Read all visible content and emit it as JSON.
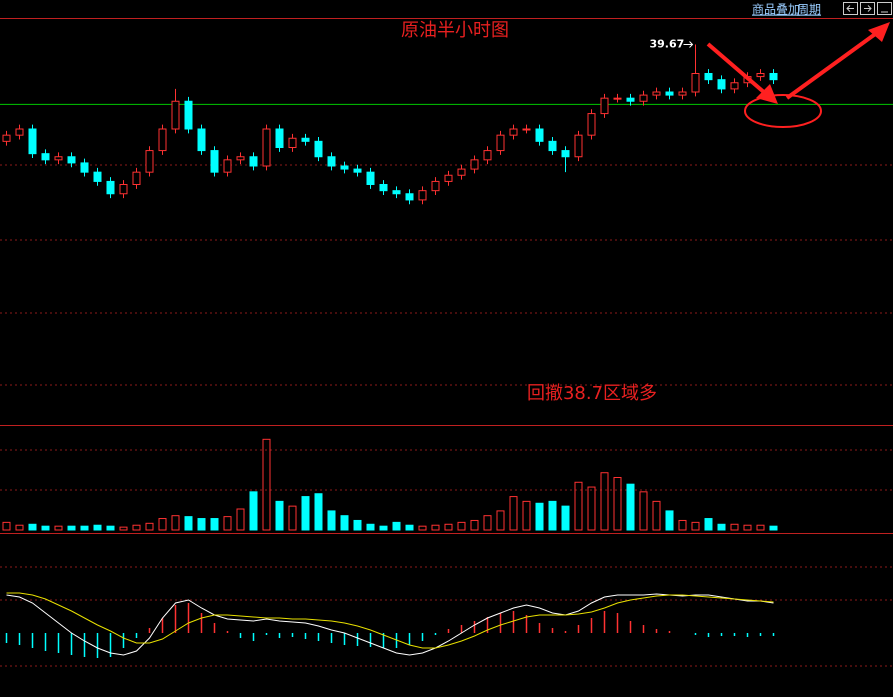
{
  "toolbar": {
    "items": [
      "商品叠加",
      "周期"
    ]
  },
  "chart_data": {
    "type": "candlestick",
    "title": "原油半小时图",
    "annotation": "回撤38.7区域多",
    "open": [
      38.1,
      38.2,
      38.3,
      37.9,
      37.8,
      37.85,
      37.75,
      37.6,
      37.45,
      37.25,
      37.4,
      37.6,
      37.95,
      38.3,
      38.75,
      38.3,
      37.95,
      37.6,
      37.8,
      37.85,
      37.7,
      38.3,
      38.0,
      38.15,
      38.1,
      37.85,
      37.7,
      37.65,
      37.6,
      37.4,
      37.3,
      37.25,
      37.15,
      37.3,
      37.45,
      37.55,
      37.65,
      37.8,
      37.95,
      38.2,
      38.3,
      38.3,
      38.1,
      37.95,
      37.85,
      38.2,
      38.55,
      38.8,
      38.8,
      38.75,
      38.85,
      38.9,
      38.85,
      38.9,
      39.2,
      39.1,
      38.95,
      39.05,
      39.15,
      39.2
    ],
    "high": [
      38.27,
      38.37,
      38.37,
      37.97,
      37.92,
      37.92,
      37.82,
      37.67,
      37.52,
      37.47,
      37.67,
      38.02,
      38.37,
      38.95,
      38.82,
      38.37,
      38.02,
      37.87,
      37.92,
      37.92,
      38.37,
      38.37,
      38.22,
      38.22,
      38.17,
      37.92,
      37.77,
      37.72,
      37.67,
      37.47,
      37.37,
      37.32,
      37.37,
      37.52,
      37.62,
      37.72,
      37.87,
      38.02,
      38.27,
      38.37,
      38.37,
      38.37,
      38.17,
      38.02,
      38.27,
      38.62,
      38.87,
      38.87,
      38.87,
      38.92,
      38.97,
      38.97,
      38.97,
      39.67,
      39.27,
      39.17,
      39.12,
      39.22,
      39.27,
      39.27
    ],
    "low": [
      38.03,
      38.13,
      37.83,
      37.73,
      37.73,
      37.68,
      37.53,
      37.38,
      37.18,
      37.18,
      37.33,
      37.53,
      37.88,
      38.23,
      38.23,
      37.88,
      37.53,
      37.53,
      37.73,
      37.63,
      37.63,
      37.93,
      37.93,
      38.03,
      37.78,
      37.63,
      37.58,
      37.53,
      37.33,
      37.23,
      37.18,
      37.08,
      37.08,
      37.23,
      37.38,
      37.48,
      37.58,
      37.73,
      37.88,
      38.13,
      38.23,
      38.03,
      37.88,
      37.6,
      37.78,
      38.13,
      38.48,
      38.73,
      38.68,
      38.68,
      38.78,
      38.78,
      38.78,
      38.83,
      39.03,
      38.88,
      38.88,
      38.98,
      39.08,
      39.03
    ],
    "close": [
      38.2,
      38.3,
      37.9,
      37.8,
      37.85,
      37.75,
      37.6,
      37.45,
      37.25,
      37.4,
      37.6,
      37.95,
      38.3,
      38.75,
      38.3,
      37.95,
      37.6,
      37.8,
      37.85,
      37.7,
      38.3,
      38.0,
      38.15,
      38.1,
      37.85,
      37.7,
      37.65,
      37.6,
      37.4,
      37.3,
      37.25,
      37.15,
      37.3,
      37.45,
      37.55,
      37.65,
      37.8,
      37.95,
      38.2,
      38.3,
      38.3,
      38.1,
      37.95,
      37.85,
      38.2,
      38.55,
      38.8,
      38.8,
      38.75,
      38.85,
      38.9,
      38.85,
      38.9,
      39.2,
      39.1,
      38.95,
      39.05,
      39.15,
      39.2,
      39.1
    ],
    "colors": {
      "up": "#ff3232",
      "down": "#00ffff"
    },
    "ylim": [
      33.5,
      40.1
    ],
    "reference_line": {
      "value": 38.7,
      "color": "#00c800"
    },
    "volume": {
      "ylim": [
        0,
        110
      ],
      "values": [
        8,
        5,
        6,
        4,
        4,
        4,
        4,
        5,
        4,
        3,
        5,
        7,
        12,
        15,
        14,
        12,
        12,
        14,
        22,
        40,
        95,
        30,
        25,
        35,
        38,
        20,
        15,
        10,
        6,
        4,
        8,
        5,
        4,
        5,
        6,
        8,
        10,
        15,
        20,
        35,
        30,
        28,
        30,
        25,
        50,
        45,
        60,
        55,
        48,
        40,
        30,
        20,
        10,
        8,
        12,
        6,
        6,
        5,
        5,
        4
      ]
    },
    "macd": {
      "ylim": [
        -0.64,
        0.9
      ],
      "histogram": [
        -0.1,
        -0.12,
        -0.15,
        -0.18,
        -0.2,
        -0.22,
        -0.24,
        -0.25,
        -0.24,
        -0.15,
        -0.05,
        0.05,
        0.15,
        0.28,
        0.3,
        0.2,
        0.1,
        0.02,
        -0.05,
        -0.08,
        -0.02,
        -0.05,
        -0.04,
        -0.06,
        -0.08,
        -0.1,
        -0.12,
        -0.13,
        -0.14,
        -0.15,
        -0.15,
        -0.12,
        -0.08,
        -0.02,
        0.04,
        0.08,
        0.12,
        0.16,
        0.2,
        0.22,
        0.18,
        0.1,
        0.05,
        0.02,
        0.08,
        0.15,
        0.22,
        0.2,
        0.12,
        0.08,
        0.04,
        0.02,
        0.0,
        -0.02,
        -0.04,
        -0.03,
        -0.03,
        -0.04,
        -0.03,
        -0.03
      ],
      "dif": [
        0.38,
        0.36,
        0.3,
        0.2,
        0.1,
        0.0,
        -0.08,
        -0.15,
        -0.2,
        -0.22,
        -0.18,
        -0.05,
        0.15,
        0.3,
        0.33,
        0.25,
        0.18,
        0.14,
        0.13,
        0.12,
        0.14,
        0.12,
        0.11,
        0.1,
        0.07,
        0.03,
        0.0,
        -0.05,
        -0.1,
        -0.15,
        -0.2,
        -0.22,
        -0.2,
        -0.15,
        -0.08,
        0.0,
        0.08,
        0.15,
        0.2,
        0.25,
        0.28,
        0.25,
        0.2,
        0.18,
        0.22,
        0.3,
        0.36,
        0.38,
        0.38,
        0.38,
        0.39,
        0.38,
        0.37,
        0.38,
        0.38,
        0.36,
        0.34,
        0.32,
        0.32,
        0.3
      ],
      "dea": [
        0.4,
        0.4,
        0.38,
        0.34,
        0.28,
        0.22,
        0.15,
        0.08,
        0.02,
        -0.05,
        -0.1,
        -0.1,
        -0.06,
        0.02,
        0.1,
        0.15,
        0.18,
        0.18,
        0.17,
        0.16,
        0.15,
        0.15,
        0.14,
        0.14,
        0.13,
        0.12,
        0.1,
        0.07,
        0.03,
        -0.02,
        -0.07,
        -0.12,
        -0.15,
        -0.15,
        -0.12,
        -0.08,
        -0.03,
        0.03,
        0.08,
        0.12,
        0.16,
        0.18,
        0.18,
        0.18,
        0.19,
        0.21,
        0.25,
        0.3,
        0.33,
        0.35,
        0.37,
        0.38,
        0.38,
        0.37,
        0.36,
        0.35,
        0.34,
        0.33,
        0.32,
        0.31
      ]
    }
  }
}
